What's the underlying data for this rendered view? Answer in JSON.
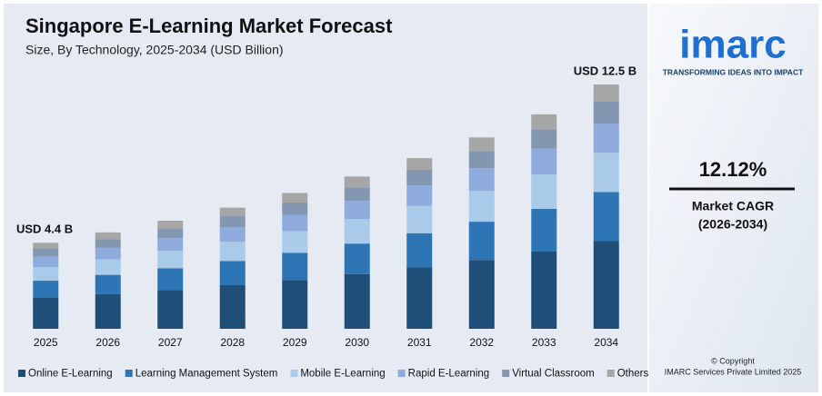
{
  "chart_data": {
    "type": "bar",
    "stacked": true,
    "title": "Singapore E-Learning Market Forecast",
    "subtitle": "Size, By Technology, 2025-2034 (USD Billion)",
    "annotations": [
      "USD 4.4 B",
      "USD 12.5 B"
    ],
    "categories": [
      "2025",
      "2026",
      "2027",
      "2028",
      "2029",
      "2030",
      "2031",
      "2032",
      "2033",
      "2034"
    ],
    "series": [
      {
        "name": "Online E-Learning",
        "color": "#1f4e79",
        "values": [
          1.58,
          1.77,
          1.99,
          2.23,
          2.5,
          2.8,
          3.14,
          3.52,
          3.95,
          4.5
        ]
      },
      {
        "name": "Learning Management System",
        "color": "#2e75b6",
        "values": [
          0.88,
          0.99,
          1.11,
          1.24,
          1.39,
          1.56,
          1.75,
          1.96,
          2.19,
          2.5
        ]
      },
      {
        "name": "Mobile E-Learning",
        "color": "#a9cbe9",
        "values": [
          0.7,
          0.79,
          0.88,
          0.99,
          1.11,
          1.25,
          1.4,
          1.57,
          1.76,
          2.0
        ]
      },
      {
        "name": "Rapid E-Learning",
        "color": "#8faadc",
        "values": [
          0.53,
          0.59,
          0.66,
          0.74,
          0.83,
          0.93,
          1.05,
          1.17,
          1.32,
          1.5
        ]
      },
      {
        "name": "Virtual Classroom",
        "color": "#8497b0",
        "values": [
          0.4,
          0.44,
          0.5,
          0.56,
          0.63,
          0.7,
          0.79,
          0.88,
          0.99,
          1.13
        ]
      },
      {
        "name": "Others",
        "color": "#a6a6a6",
        "values": [
          0.31,
          0.35,
          0.39,
          0.44,
          0.49,
          0.55,
          0.6,
          0.69,
          0.76,
          0.87
        ]
      }
    ]
  },
  "sidebar": {
    "logo": "imarc",
    "tagline": "TRANSFORMING IDEAS INTO IMPACT",
    "cagr": "12.12%",
    "cagr_label": "Market CAGR",
    "cagr_period": "(2026-2034)",
    "copyright": "© Copyright",
    "company": "IMARC Services Private Limited 2025"
  }
}
